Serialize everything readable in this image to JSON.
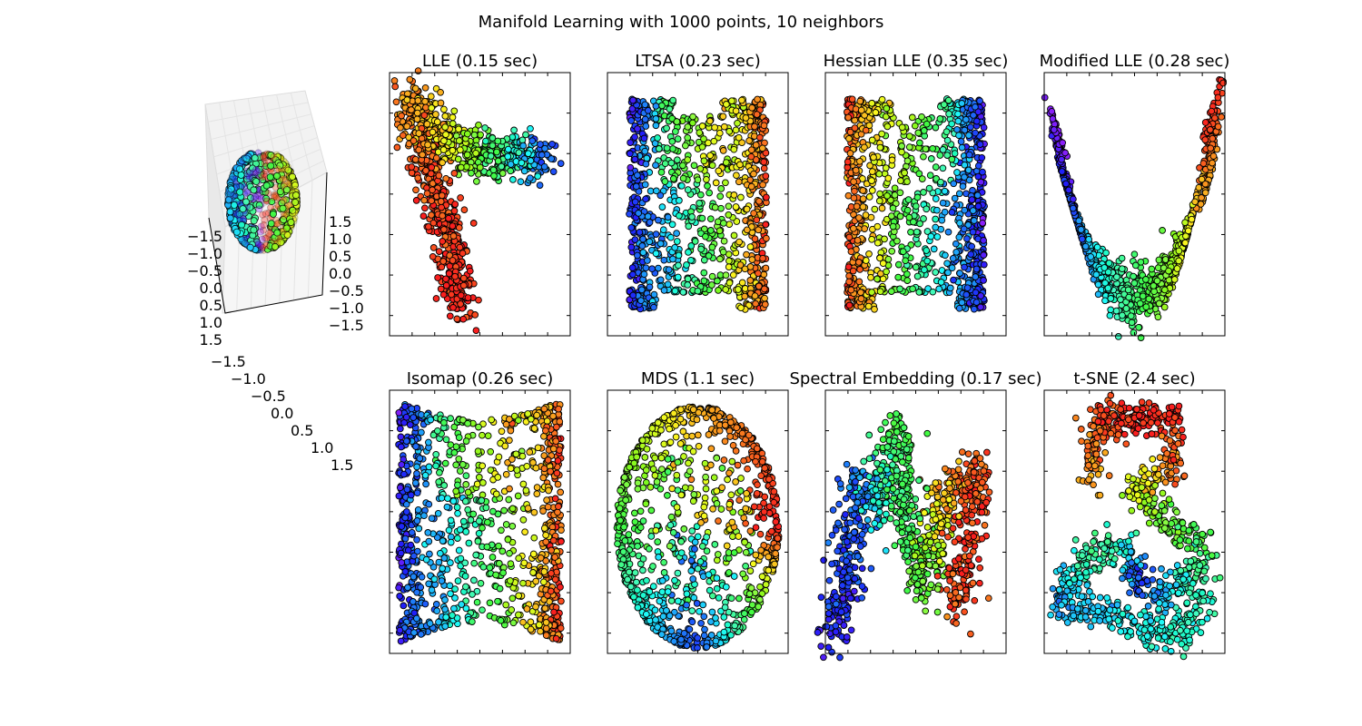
{
  "chart_data": {
    "type": "scatter",
    "title": "Manifold Learning with 1000 points, 10 neighbors",
    "n_points": 1000,
    "n_neighbors": 10,
    "colormap": "rainbow (red to purple)",
    "input_3d": {
      "title": "",
      "x_ticks": [
        "−1.5",
        "−1.0",
        "−0.5",
        "0.0",
        "0.5",
        "1.0",
        "1.5"
      ],
      "y_ticks": [
        "−1.5",
        "−1.0",
        "−0.5",
        "0.0",
        "0.5",
        "1.0",
        "1.5"
      ],
      "z_ticks": [
        "1.5",
        "1.0",
        "0.5",
        "0.0",
        "−0.5",
        "−1.0",
        "−1.5"
      ]
    },
    "panels": [
      {
        "key": "lle",
        "title": "LLE (0.15 sec)",
        "method": "LLE",
        "time_sec": 0.15
      },
      {
        "key": "ltsa",
        "title": "LTSA (0.23 sec)",
        "method": "LTSA",
        "time_sec": 0.23
      },
      {
        "key": "hessian",
        "title": "Hessian LLE (0.35 sec)",
        "method": "Hessian LLE",
        "time_sec": 0.35
      },
      {
        "key": "modified",
        "title": "Modified LLE (0.28 sec)",
        "method": "Modified LLE",
        "time_sec": 0.28
      },
      {
        "key": "isomap",
        "title": "Isomap (0.26 sec)",
        "method": "Isomap",
        "time_sec": 0.26
      },
      {
        "key": "mds",
        "title": "MDS (1.1 sec)",
        "method": "MDS",
        "time_sec": 1.1
      },
      {
        "key": "spectral",
        "title": "Spectral Embedding (0.17 sec)",
        "method": "Spectral Embedding",
        "time_sec": 0.17
      },
      {
        "key": "tsne",
        "title": "t-SNE (2.4 sec)",
        "method": "t-SNE",
        "time_sec": 2.4
      }
    ],
    "xticklabels": [],
    "yticklabels": [],
    "grid": false
  }
}
